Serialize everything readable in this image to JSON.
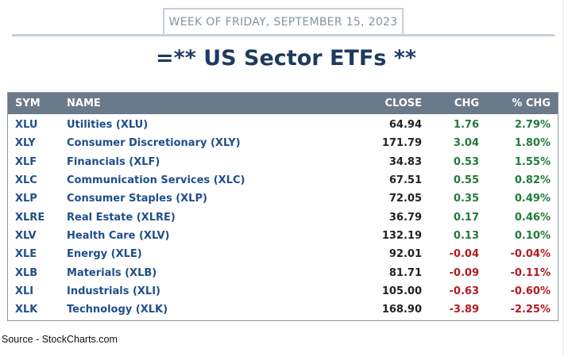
{
  "header": {
    "week_label": "WEEK OF FRIDAY, SEPTEMBER 15, 2023",
    "title": "=** US Sector ETFs **"
  },
  "table": {
    "columns": [
      "SYM",
      "NAME",
      "CLOSE",
      "CHG",
      "% CHG"
    ],
    "rows": [
      {
        "sym": "XLU",
        "name": "Utilities (XLU)",
        "close": "64.94",
        "chg": "1.76",
        "pct": "2.79%",
        "dir": "pos"
      },
      {
        "sym": "XLY",
        "name": "Consumer Discretionary (XLY)",
        "close": "171.79",
        "chg": "3.04",
        "pct": "1.80%",
        "dir": "pos"
      },
      {
        "sym": "XLF",
        "name": "Financials (XLF)",
        "close": "34.83",
        "chg": "0.53",
        "pct": "1.55%",
        "dir": "pos"
      },
      {
        "sym": "XLC",
        "name": "Communication Services (XLC)",
        "close": "67.51",
        "chg": "0.55",
        "pct": "0.82%",
        "dir": "pos"
      },
      {
        "sym": "XLP",
        "name": "Consumer Staples (XLP)",
        "close": "72.05",
        "chg": "0.35",
        "pct": "0.49%",
        "dir": "pos"
      },
      {
        "sym": "XLRE",
        "name": "Real Estate (XLRE)",
        "close": "36.79",
        "chg": "0.17",
        "pct": "0.46%",
        "dir": "pos"
      },
      {
        "sym": "XLV",
        "name": "Health Care (XLV)",
        "close": "132.19",
        "chg": "0.13",
        "pct": "0.10%",
        "dir": "pos"
      },
      {
        "sym": "XLE",
        "name": "Energy (XLE)",
        "close": "92.01",
        "chg": "-0.04",
        "pct": "-0.04%",
        "dir": "neg"
      },
      {
        "sym": "XLB",
        "name": "Materials (XLB)",
        "close": "81.71",
        "chg": "-0.09",
        "pct": "-0.11%",
        "dir": "neg"
      },
      {
        "sym": "XLI",
        "name": "Industrials (XLI)",
        "close": "105.00",
        "chg": "-0.63",
        "pct": "-0.60%",
        "dir": "neg"
      },
      {
        "sym": "XLK",
        "name": "Technology (XLK)",
        "close": "168.90",
        "chg": "-3.89",
        "pct": "-2.25%",
        "dir": "neg"
      }
    ]
  },
  "footer": {
    "source": "Source - StockCharts.com"
  },
  "colors": {
    "positive": "#237a3b",
    "negative": "#b01c22",
    "header_bg": "#6b7a8a",
    "title": "#1e3a5f"
  }
}
